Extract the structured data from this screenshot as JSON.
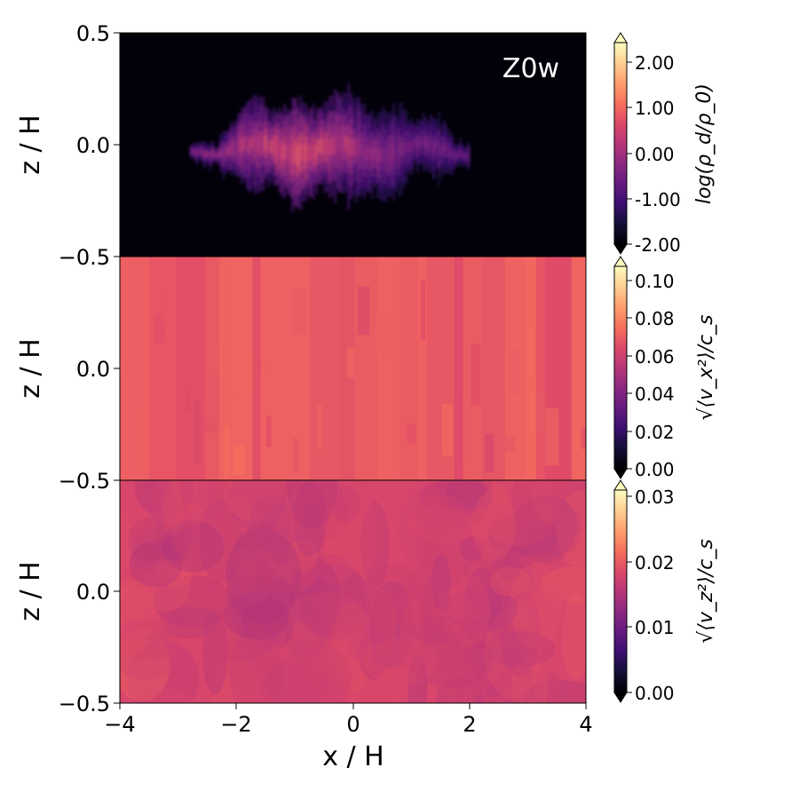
{
  "colors": {
    "colormap": "magma",
    "stops": [
      "#000004",
      "#140e36",
      "#3b0f70",
      "#641a80",
      "#8c2981",
      "#b73779",
      "#de4968",
      "#f7705c",
      "#fe9f6d",
      "#fecf92",
      "#fcfdbf"
    ]
  },
  "chart_data": [
    {
      "type": "heatmap",
      "annotation": "Z0w",
      "ylabel": "z / H",
      "xlim": [
        -4,
        4
      ],
      "ylim": [
        -0.5,
        0.5
      ],
      "yticks": [
        "0.5",
        "0.0",
        "−0.5"
      ],
      "yticks_values": [
        0.5,
        0.0,
        -0.5
      ],
      "colorbar": {
        "label": "log(ρ_d/ρ_0)",
        "range": [
          -2.0,
          2.5
        ],
        "ticks": [
          "2.00",
          "1.00",
          "0.00",
          "-1.00",
          "-2.00"
        ],
        "ticks_values": [
          2.0,
          1.0,
          0.0,
          -1.0,
          -2.0
        ],
        "extend": "both"
      },
      "background_value": -2.0,
      "dust_layer": {
        "x_range": [
          -2.8,
          2.0
        ],
        "z_center": -0.02,
        "peak_value": 1.2
      }
    },
    {
      "type": "heatmap",
      "ylabel": "z / H",
      "xlim": [
        -4,
        4
      ],
      "ylim": [
        -0.5,
        0.5
      ],
      "yticks": [
        "0.0",
        "−0.5"
      ],
      "yticks_values": [
        0.0,
        -0.5
      ],
      "colorbar": {
        "label": "√⟨v_x²⟩/c_s",
        "range": [
          0.0,
          0.11
        ],
        "ticks": [
          "0.10",
          "0.08",
          "0.06",
          "0.04",
          "0.02",
          "0.00"
        ],
        "ticks_values": [
          0.1,
          0.08,
          0.06,
          0.04,
          0.02,
          0.0
        ],
        "extend": "both"
      },
      "typical_value": 0.07
    },
    {
      "type": "heatmap",
      "ylabel": "z / H",
      "xlabel": "x / H",
      "xlim": [
        -4,
        4
      ],
      "ylim": [
        -0.5,
        0.5
      ],
      "xticks": [
        "−4",
        "−2",
        "0",
        "2",
        "4"
      ],
      "xticks_values": [
        -4,
        -2,
        0,
        2,
        4
      ],
      "yticks": [
        "0.0",
        "−0.5"
      ],
      "yticks_values": [
        0.0,
        -0.5
      ],
      "colorbar": {
        "label": "√⟨v_z²⟩/c_s",
        "range": [
          0.0,
          0.031
        ],
        "ticks": [
          "0.03",
          "0.02",
          "0.01",
          "0.00"
        ],
        "ticks_values": [
          0.03,
          0.02,
          0.01,
          0.0
        ],
        "extend": "both"
      },
      "typical_value": 0.0175
    }
  ]
}
